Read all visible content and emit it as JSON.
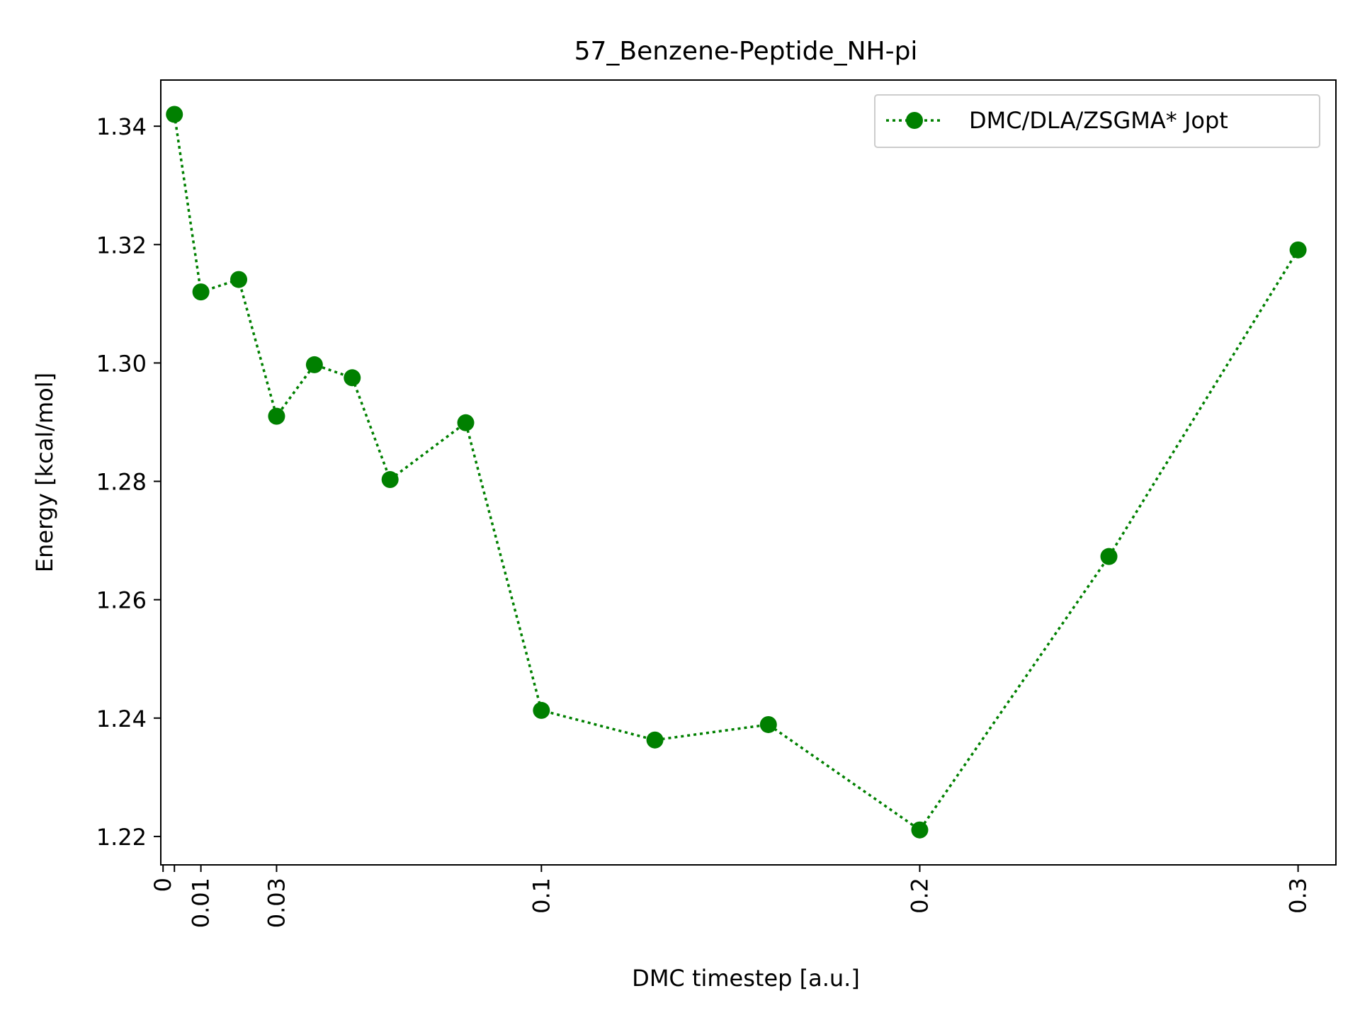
{
  "chart_data": {
    "type": "line",
    "title": "57_Benzene-Peptide_NH-pi",
    "xlabel": "DMC timestep [a.u.]",
    "ylabel": "Energy [kcal/mol]",
    "xlim": [
      -0.0006,
      0.31
    ],
    "ylim": [
      1.2152,
      1.3478
    ],
    "x_ticks": [
      0,
      0.003,
      0.01,
      0.03,
      0.1,
      0.2,
      0.3
    ],
    "x_tick_labels": [
      "0",
      "",
      "0.01",
      "0.03",
      "0.1",
      "0.2",
      "0.3"
    ],
    "y_ticks": [
      1.22,
      1.24,
      1.26,
      1.28,
      1.3,
      1.32,
      1.34
    ],
    "y_tick_labels": [
      "1.22",
      "1.24",
      "1.26",
      "1.28",
      "1.30",
      "1.32",
      "1.34"
    ],
    "grid": false,
    "legend": {
      "position": "top-right"
    },
    "series": [
      {
        "name": "DMC/DLA/ZSGMA* Jopt",
        "color": "#008000",
        "linestyle": "dotted",
        "marker": "circle",
        "x": [
          0.003,
          0.01,
          0.02,
          0.03,
          0.04,
          0.05,
          0.06,
          0.08,
          0.1,
          0.13,
          0.16,
          0.2,
          0.25,
          0.3
        ],
        "y": [
          1.342,
          1.312,
          1.3141,
          1.291,
          1.2997,
          1.2975,
          1.2803,
          1.2899,
          1.2413,
          1.2363,
          1.2389,
          1.2211,
          1.2673,
          1.3191
        ]
      }
    ]
  }
}
